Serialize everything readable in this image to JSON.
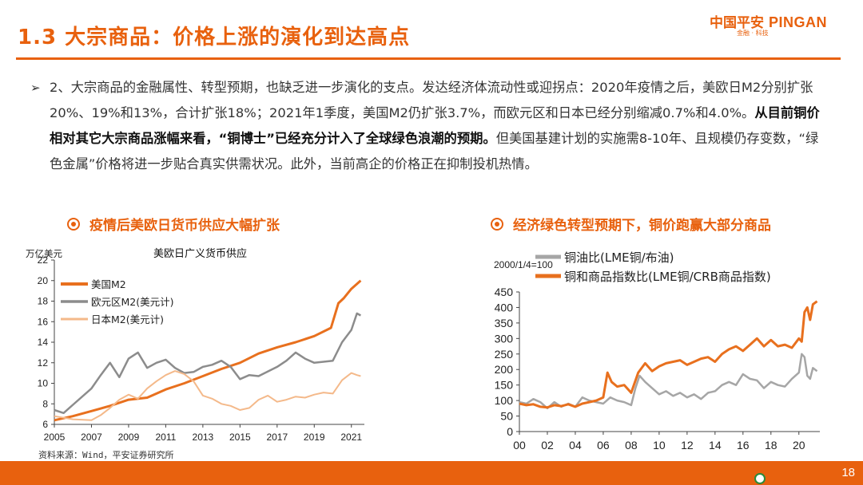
{
  "slide": {
    "title": "1.3 大宗商品：价格上涨的演化到达高点",
    "logo_cn": "中国平安",
    "logo_en": "PINGAN",
    "logo_sub": "金融 · 科技",
    "page_number": "18",
    "source": "资料来源：Wind，平安证券研究所"
  },
  "body": {
    "bullet": "➢",
    "text_1": "2、大宗商品的金融属性、转型预期，也缺乏进一步演化的支点。发达经济体流动性或迎拐点：2020年疫情之后，美欧日M2分别扩张20%、19%和13%，合计扩张18%；2021年1季度，美国M2仍扩张3.7%，而欧元区和日本已经分别缩减0.7%和4.0%。",
    "text_2": "从目前铜价相对其它大宗商品涨幅来看，“铜博士”已经充分计入了全球绿色浪潮的预期。",
    "text_3": "但美国基建计划的实施需8-10年、且规模仍存变数，“绿色金属”价格将进一步贴合真实供需状况。此外，当前高企的价格正在抑制投机热情。"
  },
  "section_left": {
    "heading": "疫情后美欧日货币供应大幅扩张"
  },
  "section_right": {
    "heading": "经济绿色转型预期下，铜价跑赢大部分商品"
  },
  "chart_data": [
    {
      "type": "line",
      "title": "美欧日广义货币供应",
      "ylabel": "万亿美元",
      "ylim": [
        6,
        22
      ],
      "yticks": [
        6,
        8,
        10,
        12,
        14,
        16,
        18,
        20,
        22
      ],
      "xlim": [
        2005,
        2021.7
      ],
      "xticks": [
        2005,
        2007,
        2009,
        2011,
        2013,
        2015,
        2017,
        2019,
        2021
      ],
      "legend_position": "top-left",
      "series": [
        {
          "name": "美国M2",
          "color": "#e8701e",
          "width": 3,
          "x": [
            2005,
            2006,
            2007,
            2008,
            2009,
            2010,
            2011,
            2012,
            2013,
            2014,
            2015,
            2016,
            2017,
            2018,
            2019,
            2019.9,
            2020.3,
            2020.6,
            2021,
            2021.5
          ],
          "values": [
            6.4,
            6.8,
            7.3,
            7.8,
            8.4,
            8.6,
            9.4,
            10.0,
            10.7,
            11.4,
            12.0,
            12.9,
            13.5,
            14.0,
            14.6,
            15.4,
            17.8,
            18.3,
            19.2,
            20.0
          ]
        },
        {
          "name": "欧元区M2(美元计)",
          "color": "#8c8c8c",
          "width": 2.5,
          "x": [
            2005,
            2005.5,
            2006,
            2007,
            2007.5,
            2008,
            2008.5,
            2009,
            2009.5,
            2010,
            2010.5,
            2011,
            2011.5,
            2012,
            2012.5,
            2013,
            2013.5,
            2014,
            2014.5,
            2015,
            2015.5,
            2016,
            2017,
            2017.5,
            2018,
            2018.5,
            2019,
            2019.5,
            2020,
            2020.5,
            2021,
            2021.3,
            2021.5
          ],
          "values": [
            7.4,
            7.1,
            7.9,
            9.5,
            10.8,
            12.0,
            10.6,
            12.4,
            13.0,
            11.5,
            12.0,
            12.3,
            11.5,
            11.0,
            11.1,
            11.6,
            11.8,
            12.2,
            11.6,
            10.4,
            10.8,
            10.7,
            11.6,
            12.2,
            13.0,
            12.4,
            12.0,
            12.1,
            12.2,
            14.0,
            15.2,
            16.8,
            16.6
          ]
        },
        {
          "name": "日本M2(美元计)",
          "color": "#f4b98a",
          "width": 2,
          "x": [
            2005,
            2006,
            2007,
            2007.5,
            2008,
            2008.5,
            2009,
            2009.5,
            2010,
            2010.5,
            2011,
            2011.5,
            2012,
            2012.5,
            2013,
            2013.5,
            2014,
            2014.5,
            2015,
            2015.5,
            2016,
            2016.5,
            2017,
            2017.5,
            2018,
            2018.5,
            2019,
            2019.5,
            2020,
            2020.5,
            2021,
            2021.3,
            2021.5
          ],
          "values": [
            6.8,
            6.5,
            6.4,
            6.9,
            7.6,
            8.4,
            8.9,
            8.5,
            9.5,
            10.2,
            10.8,
            11.2,
            10.9,
            10.2,
            8.8,
            8.5,
            8.0,
            7.8,
            7.4,
            7.6,
            8.4,
            8.8,
            8.2,
            8.4,
            8.7,
            8.6,
            8.9,
            9.1,
            9.0,
            10.3,
            11.0,
            10.8,
            10.7
          ]
        }
      ]
    },
    {
      "type": "line",
      "title": "",
      "annotation": "2000/1/4=100",
      "ylim": [
        0,
        450
      ],
      "yticks": [
        0,
        50,
        100,
        150,
        200,
        250,
        300,
        350,
        400,
        450
      ],
      "xlim": [
        0,
        21.5
      ],
      "xticks": [
        "00",
        "02",
        "04",
        "06",
        "08",
        "10",
        "12",
        "14",
        "16",
        "18",
        "20"
      ],
      "legend_position": "top",
      "series": [
        {
          "name": "铜油比(LME铜/布油)",
          "color": "#a6a6a6",
          "width": 2.5,
          "x": [
            0,
            0.5,
            1,
            1.5,
            2,
            2.5,
            3,
            3.5,
            4,
            4.5,
            5,
            5.5,
            6,
            6.5,
            7,
            7.5,
            8,
            8.3,
            8.6,
            9,
            9.5,
            10,
            10.5,
            11,
            11.5,
            12,
            12.5,
            13,
            13.5,
            14,
            14.5,
            15,
            15.5,
            16,
            16.5,
            17,
            17.5,
            18,
            18.5,
            19,
            19.5,
            20,
            20.2,
            20.4,
            20.6,
            20.8,
            21,
            21.3
          ],
          "values": [
            95,
            90,
            105,
            95,
            75,
            95,
            80,
            90,
            80,
            110,
            100,
            95,
            90,
            110,
            100,
            95,
            85,
            140,
            180,
            160,
            140,
            120,
            130,
            115,
            125,
            110,
            120,
            105,
            125,
            130,
            150,
            160,
            150,
            185,
            170,
            165,
            140,
            160,
            150,
            145,
            170,
            190,
            250,
            240,
            180,
            170,
            205,
            195
          ]
        },
        {
          "name": "铜和商品指数比(LME铜/CRB商品指数)",
          "color": "#e8701e",
          "width": 3,
          "x": [
            0,
            0.5,
            1,
            1.5,
            2,
            2.5,
            3,
            3.5,
            4,
            4.5,
            5,
            5.5,
            6,
            6.3,
            6.6,
            7,
            7.5,
            8,
            8.5,
            9,
            9.5,
            10,
            10.5,
            11,
            11.5,
            12,
            12.5,
            13,
            13.5,
            14,
            14.5,
            15,
            15.5,
            16,
            16.5,
            17,
            17.5,
            18,
            18.5,
            19,
            19.5,
            20,
            20.2,
            20.4,
            20.6,
            20.8,
            21,
            21.3
          ],
          "values": [
            90,
            85,
            88,
            80,
            78,
            85,
            82,
            88,
            80,
            90,
            95,
            100,
            110,
            190,
            160,
            145,
            150,
            125,
            190,
            220,
            195,
            210,
            220,
            225,
            230,
            215,
            225,
            235,
            240,
            225,
            250,
            265,
            275,
            260,
            280,
            300,
            275,
            295,
            275,
            280,
            270,
            300,
            290,
            385,
            400,
            360,
            410,
            420
          ]
        }
      ]
    }
  ]
}
